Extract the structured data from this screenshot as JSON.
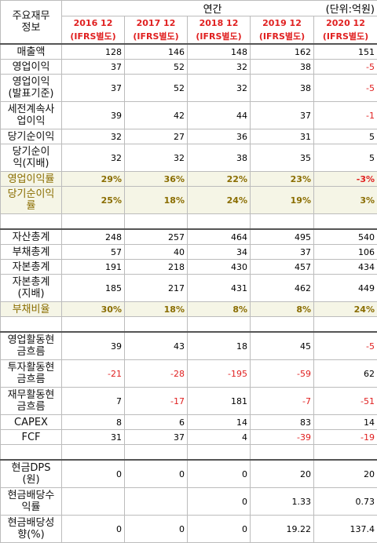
{
  "header": {
    "title": "주요재무\n정보",
    "period": "연간",
    "unit": "(단위:억원)",
    "years": [
      {
        "year": "2016 12",
        "std": "(IFRS별도)"
      },
      {
        "year": "2017 12",
        "std": "(IFRS별도)"
      },
      {
        "year": "2018 12",
        "std": "(IFRS별도)"
      },
      {
        "year": "2019 12",
        "std": "(IFRS별도)"
      },
      {
        "year": "2020 12",
        "std": "(IFRS별도)"
      }
    ]
  },
  "rows": {
    "r1": {
      "label": "매출액",
      "v": [
        "128",
        "146",
        "148",
        "162",
        "151"
      ]
    },
    "r2": {
      "label": "영업이익",
      "v": [
        "37",
        "52",
        "32",
        "38",
        "-5"
      ]
    },
    "r3": {
      "label": "영업이익\n(발표기준)",
      "v": [
        "37",
        "52",
        "32",
        "38",
        "-5"
      ]
    },
    "r4": {
      "label": "세전계속사\n업이익",
      "v": [
        "39",
        "42",
        "44",
        "37",
        "-1"
      ]
    },
    "r5": {
      "label": "당기순이익",
      "v": [
        "32",
        "27",
        "36",
        "31",
        "5"
      ]
    },
    "r6": {
      "label": "당기순이\n익(지배)",
      "v": [
        "32",
        "32",
        "38",
        "35",
        "5"
      ]
    },
    "r7": {
      "label": "영업이익률",
      "v": [
        "29%",
        "36%",
        "22%",
        "23%",
        "-3%"
      ]
    },
    "r8": {
      "label": "당기순이익\n률",
      "v": [
        "25%",
        "18%",
        "24%",
        "19%",
        "3%"
      ]
    },
    "r9": {
      "label": "자산총계",
      "v": [
        "248",
        "257",
        "464",
        "495",
        "540"
      ]
    },
    "r10": {
      "label": "부채총계",
      "v": [
        "57",
        "40",
        "34",
        "37",
        "106"
      ]
    },
    "r11": {
      "label": "자본총계",
      "v": [
        "191",
        "218",
        "430",
        "457",
        "434"
      ]
    },
    "r12": {
      "label": "자본총계\n(지배)",
      "v": [
        "185",
        "217",
        "431",
        "462",
        "449"
      ]
    },
    "r13": {
      "label": "부채비율",
      "v": [
        "30%",
        "18%",
        "8%",
        "8%",
        "24%"
      ]
    },
    "r14": {
      "label": "영업활동현\n금흐름",
      "v": [
        "39",
        "43",
        "18",
        "45",
        "-5"
      ]
    },
    "r15": {
      "label": "투자활동현\n금흐름",
      "v": [
        "-21",
        "-28",
        "-195",
        "-59",
        "62"
      ]
    },
    "r16": {
      "label": "재무활동현\n금흐름",
      "v": [
        "7",
        "-17",
        "181",
        "-7",
        "-51"
      ]
    },
    "r17": {
      "label": "CAPEX",
      "v": [
        "8",
        "6",
        "14",
        "83",
        "14"
      ]
    },
    "r18": {
      "label": "FCF",
      "v": [
        "31",
        "37",
        "4",
        "-39",
        "-19"
      ]
    },
    "r19": {
      "label": "현금DPS\n(원)",
      "v": [
        "0",
        "0",
        "0",
        "20",
        "20"
      ]
    },
    "r20": {
      "label": "현금배당수\n익률",
      "v": [
        "",
        "",
        "0",
        "1.33",
        "0.73"
      ]
    },
    "r21": {
      "label": "현금배당성\n향(%)",
      "v": [
        "0",
        "0",
        "0",
        "19.22",
        "137.4"
      ]
    }
  }
}
